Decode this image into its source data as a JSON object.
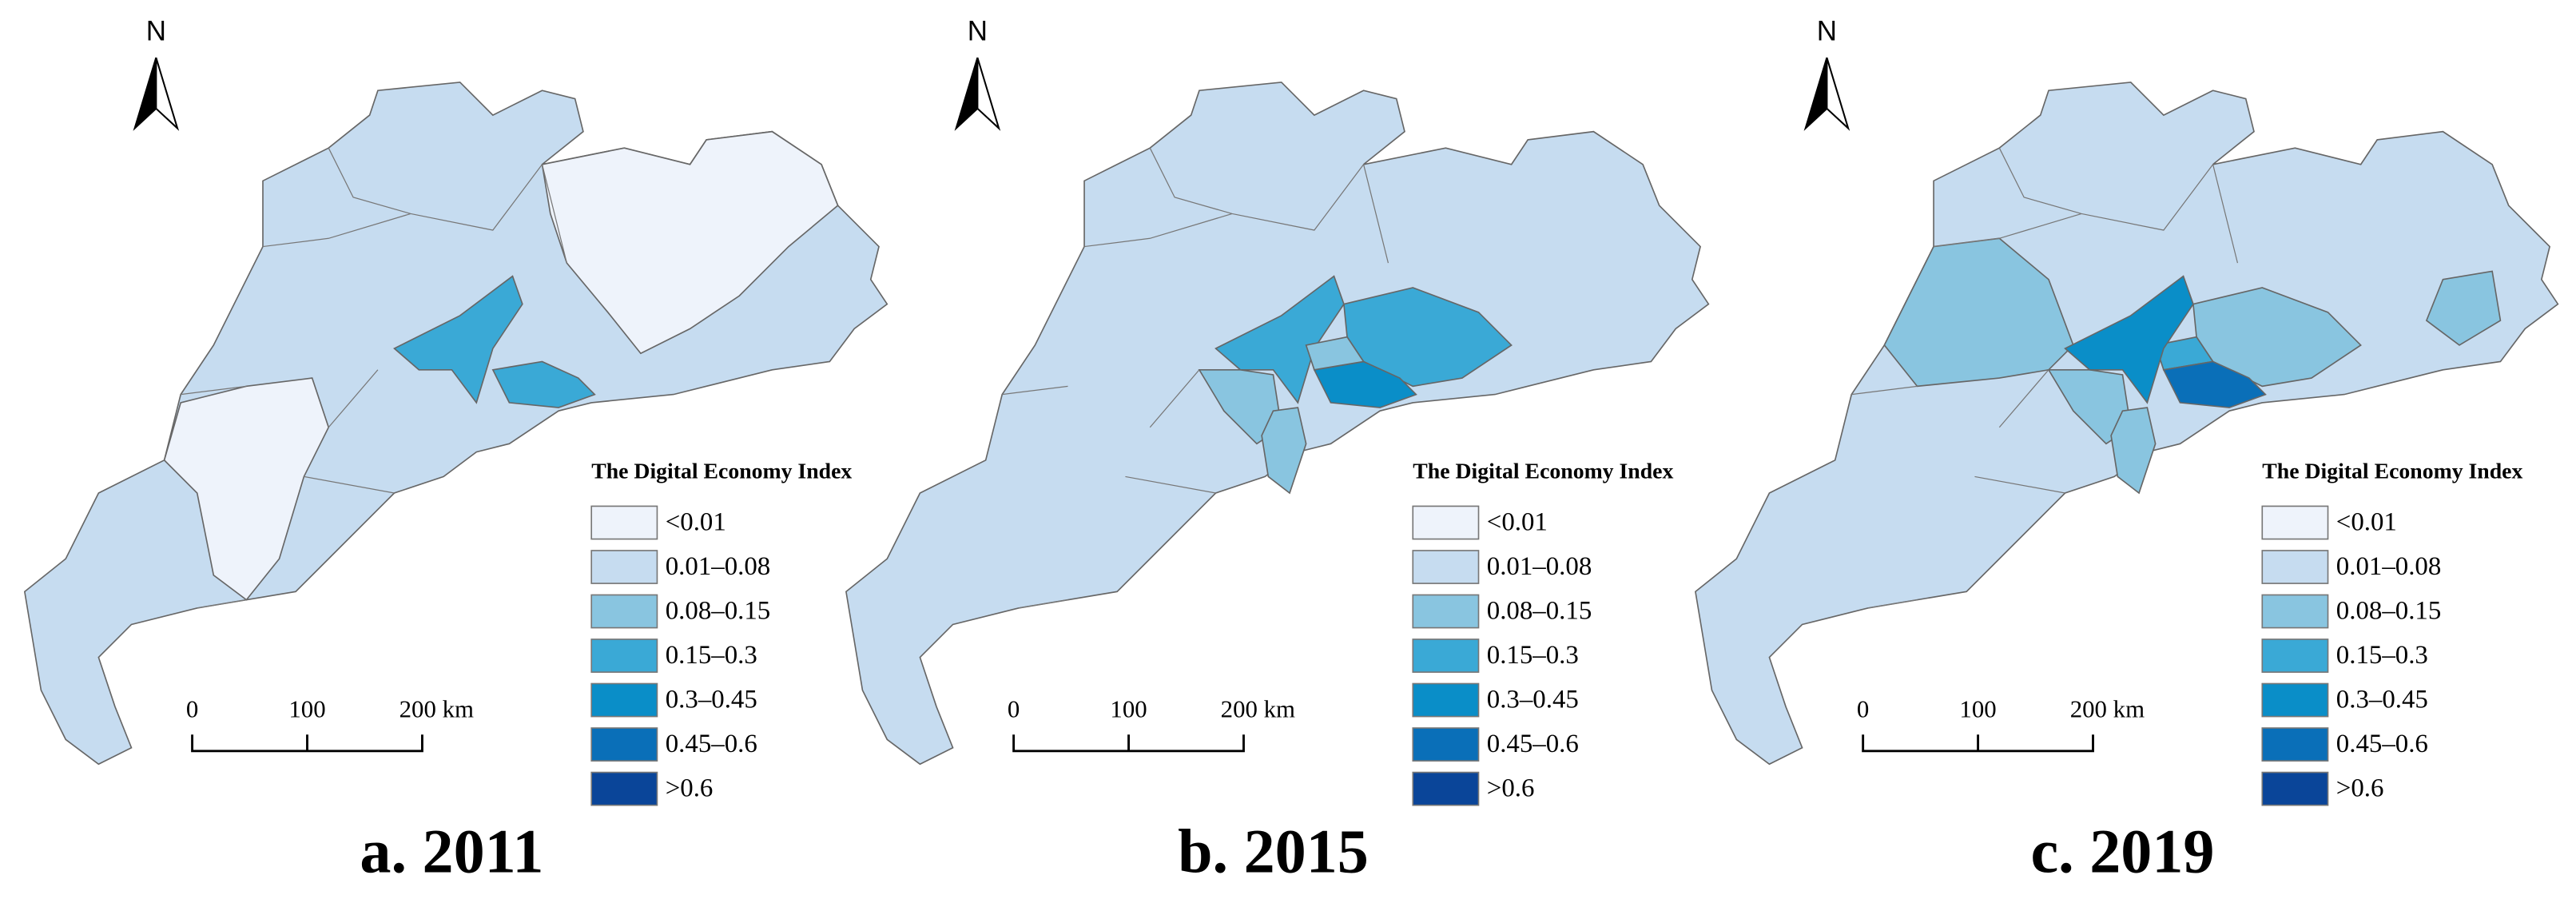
{
  "maps": [
    {
      "caption": "a. 2011"
    },
    {
      "caption": "b. 2015"
    },
    {
      "caption": "c. 2019"
    }
  ],
  "north": "N",
  "legend": {
    "title": "The Digital Economy Index",
    "items": [
      {
        "label": "<0.01",
        "color": "#eef3fb"
      },
      {
        "label": "0.01–0.08",
        "color": "#c6dcf0"
      },
      {
        "label": "0.08–0.15",
        "color": "#89c5e0"
      },
      {
        "label": "0.15–0.3",
        "color": "#3aa9d6"
      },
      {
        "label": "0.3–0.45",
        "color": "#0a8ec8"
      },
      {
        "label": "0.45–0.6",
        "color": "#0a6fb8"
      },
      {
        "label": ">0.6",
        "color": "#0a4599"
      }
    ]
  },
  "scale_bar": {
    "labels": [
      "0",
      "100",
      "200 km"
    ]
  }
}
